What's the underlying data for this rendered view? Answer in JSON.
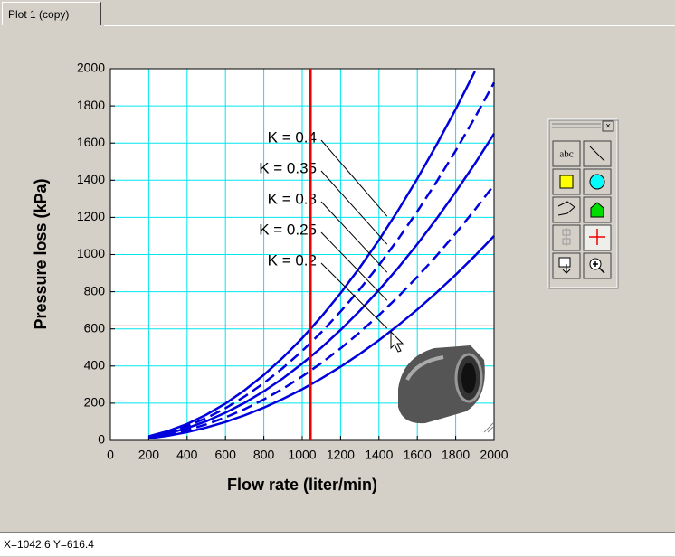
{
  "tab": "Plot 1 (copy)",
  "status": "X=1042.6   Y=616.4",
  "toolbar": {
    "text_tool": "abc"
  },
  "chart_data": {
    "type": "line",
    "x_label": "Flow rate (liter/min)",
    "y_label": "Pressure loss (kPa)",
    "x": [
      200,
      300,
      400,
      500,
      600,
      700,
      800,
      900,
      1000,
      1100,
      1200,
      1300,
      1400,
      1500,
      1600,
      1700,
      1800,
      1900,
      2000
    ],
    "series": [
      {
        "name": "K = 0.4",
        "color": "#0000dd",
        "dashed": false,
        "values": [
          22,
          50,
          88,
          138,
          198,
          270,
          352,
          446,
          550,
          666,
          792,
          930,
          1078,
          1238,
          1408,
          1590,
          1782,
          1986,
          null
        ]
      },
      {
        "name": "K = 0.35",
        "color": "#0000dd",
        "dashed": true,
        "values": [
          19,
          43,
          77,
          120,
          173,
          236,
          308,
          390,
          481,
          582,
          693,
          813,
          943,
          1083,
          1232,
          1391,
          1559,
          1737,
          1925
        ]
      },
      {
        "name": "K = 0.3",
        "color": "#0000dd",
        "dashed": false,
        "values": [
          17,
          37,
          66,
          103,
          149,
          202,
          264,
          334,
          413,
          499,
          594,
          697,
          809,
          928,
          1056,
          1192,
          1337,
          1489,
          1650
        ]
      },
      {
        "name": "K = 0.25",
        "color": "#0000dd",
        "dashed": true,
        "values": [
          14,
          31,
          55,
          86,
          124,
          168,
          220,
          278,
          344,
          416,
          495,
          581,
          674,
          773,
          880,
          993,
          1114,
          1241,
          1375
        ]
      },
      {
        "name": "K = 0.2",
        "color": "#0000dd",
        "dashed": false,
        "values": [
          11,
          25,
          44,
          69,
          99,
          135,
          176,
          223,
          275,
          333,
          396,
          465,
          539,
          619,
          704,
          795,
          891,
          993,
          1100
        ]
      }
    ],
    "xlim": [
      0,
      2000
    ],
    "ylim": [
      0,
      2000
    ],
    "xticks": [
      0,
      200,
      400,
      600,
      800,
      1000,
      1200,
      1400,
      1600,
      1800,
      2000
    ],
    "yticks": [
      0,
      200,
      400,
      600,
      800,
      1000,
      1200,
      1400,
      1600,
      1800,
      2000
    ],
    "grid": true,
    "grid_color": "#00e5ee",
    "cursor": {
      "x": 1042.6,
      "y": 616.4,
      "color": "#ee0000"
    }
  }
}
